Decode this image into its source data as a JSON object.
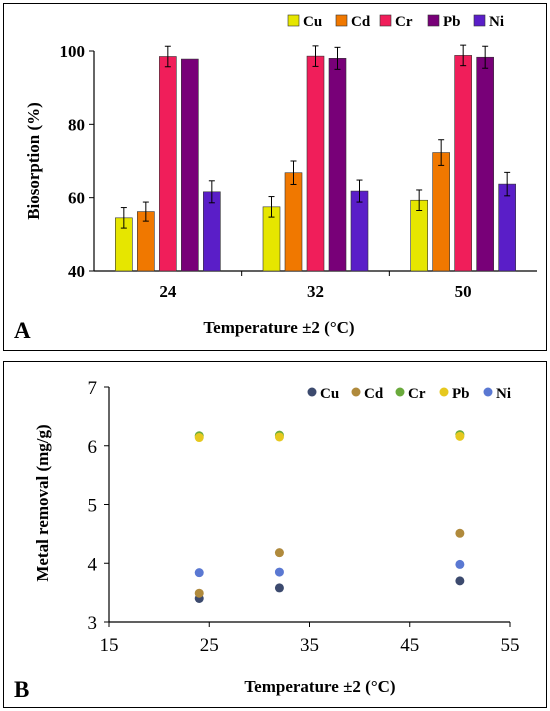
{
  "colors": {
    "Cu": "#e6e600",
    "Cd": "#f07800",
    "Cr": "#f01e5a",
    "Pb": "#780078",
    "Ni": "#5a1ec8",
    "scatter": {
      "Cu": "#3c4a6e",
      "Cd": "#b08a3c",
      "Cr": "#6aaa3c",
      "Pb": "#e6c81e",
      "Ni": "#5a78d2"
    }
  },
  "chart_data": [
    {
      "type": "bar",
      "panel_label": "A",
      "title": "",
      "xlabel": "Temperature ±2 (°C)",
      "ylabel": "Biosorption (%)",
      "categories": [
        "24",
        "32",
        "50"
      ],
      "ylim": [
        40,
        100
      ],
      "yticks": [
        "40",
        "60",
        "80",
        "100"
      ],
      "legend_position": "top-right",
      "series": [
        {
          "name": "Cu",
          "values": [
            54.5,
            57.5,
            59.3
          ],
          "errors": [
            2.8,
            2.8,
            2.8
          ]
        },
        {
          "name": "Cd",
          "values": [
            56.2,
            66.8,
            72.3
          ],
          "errors": [
            2.6,
            3.2,
            3.5
          ]
        },
        {
          "name": "Cr",
          "values": [
            98.5,
            98.6,
            98.8
          ],
          "errors": [
            2.8,
            2.8,
            2.8
          ]
        },
        {
          "name": "Pb",
          "values": [
            97.8,
            98.0,
            98.3
          ],
          "errors": [
            0,
            3.0,
            3.0
          ]
        },
        {
          "name": "Ni",
          "values": [
            61.6,
            61.8,
            63.7
          ],
          "errors": [
            3.0,
            3.0,
            3.2
          ]
        }
      ]
    },
    {
      "type": "scatter",
      "panel_label": "B",
      "title": "",
      "xlabel": "Temperature ±2 (°C)",
      "ylabel": "Metal removal (mg/g)",
      "xlim": [
        15,
        55
      ],
      "ylim": [
        3,
        7
      ],
      "xticks": [
        "15",
        "25",
        "35",
        "45",
        "55"
      ],
      "yticks": [
        "3",
        "4",
        "5",
        "6",
        "7"
      ],
      "legend_position": "top-right",
      "series": [
        {
          "name": "Cu",
          "x": [
            24,
            32,
            50
          ],
          "y": [
            3.4,
            3.58,
            3.7
          ]
        },
        {
          "name": "Cd",
          "x": [
            24,
            32,
            50
          ],
          "y": [
            3.49,
            4.18,
            4.51
          ]
        },
        {
          "name": "Cr",
          "x": [
            24,
            32,
            50
          ],
          "y": [
            6.17,
            6.18,
            6.19
          ]
        },
        {
          "name": "Pb",
          "x": [
            24,
            32,
            50
          ],
          "y": [
            6.14,
            6.15,
            6.16
          ]
        },
        {
          "name": "Ni",
          "x": [
            24,
            32,
            50
          ],
          "y": [
            3.84,
            3.85,
            3.98
          ]
        }
      ]
    }
  ]
}
